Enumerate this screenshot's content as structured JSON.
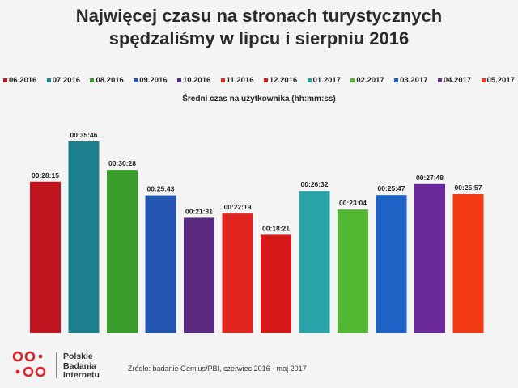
{
  "title": {
    "line1": "Najwięcej czasu na stronach turystycznych",
    "line2": "spędzaliśmy w lipcu i sierpniu 2016"
  },
  "subtitle": "Średni czas na użytkownika (hh:mm:ss)",
  "colors": {
    "06.2016": "#c0141e",
    "07.2016": "#1b7f8e",
    "08.2016": "#3a9c2a",
    "09.2016": "#2455b0",
    "10.2016": "#5a2a80",
    "11.2016": "#e0261e",
    "12.2016": "#d61818",
    "01.2017": "#28a3a8",
    "02.2017": "#52b832",
    "03.2017": "#1e62c6",
    "04.2017": "#6a2a9a",
    "05.2017": "#f23a14"
  },
  "chart_data": {
    "type": "bar",
    "categories": [
      "06.2016",
      "07.2016",
      "08.2016",
      "09.2016",
      "10.2016",
      "11.2016",
      "12.2016",
      "01.2017",
      "02.2017",
      "03.2017",
      "04.2017",
      "05.2017"
    ],
    "values": [
      1695,
      2146,
      1828,
      1543,
      1291,
      1339,
      1101,
      1592,
      1384,
      1547,
      1668,
      1557
    ],
    "value_labels": [
      "00:28:15",
      "00:35:46",
      "00:30:28",
      "00:25:43",
      "00:21:31",
      "00:22:19",
      "00:18:21",
      "00:26:32",
      "00:23:04",
      "00:25:47",
      "00:27:48",
      "00:25:57"
    ],
    "ylim": [
      0,
      2146
    ],
    "legend_position": "top",
    "grid": false
  },
  "footer": {
    "brand_lines": [
      "Polskie",
      "Badania",
      "Internetu"
    ],
    "source": "Źródło: badanie Gemius/PBI, czerwiec 2016 - maj 2017"
  }
}
